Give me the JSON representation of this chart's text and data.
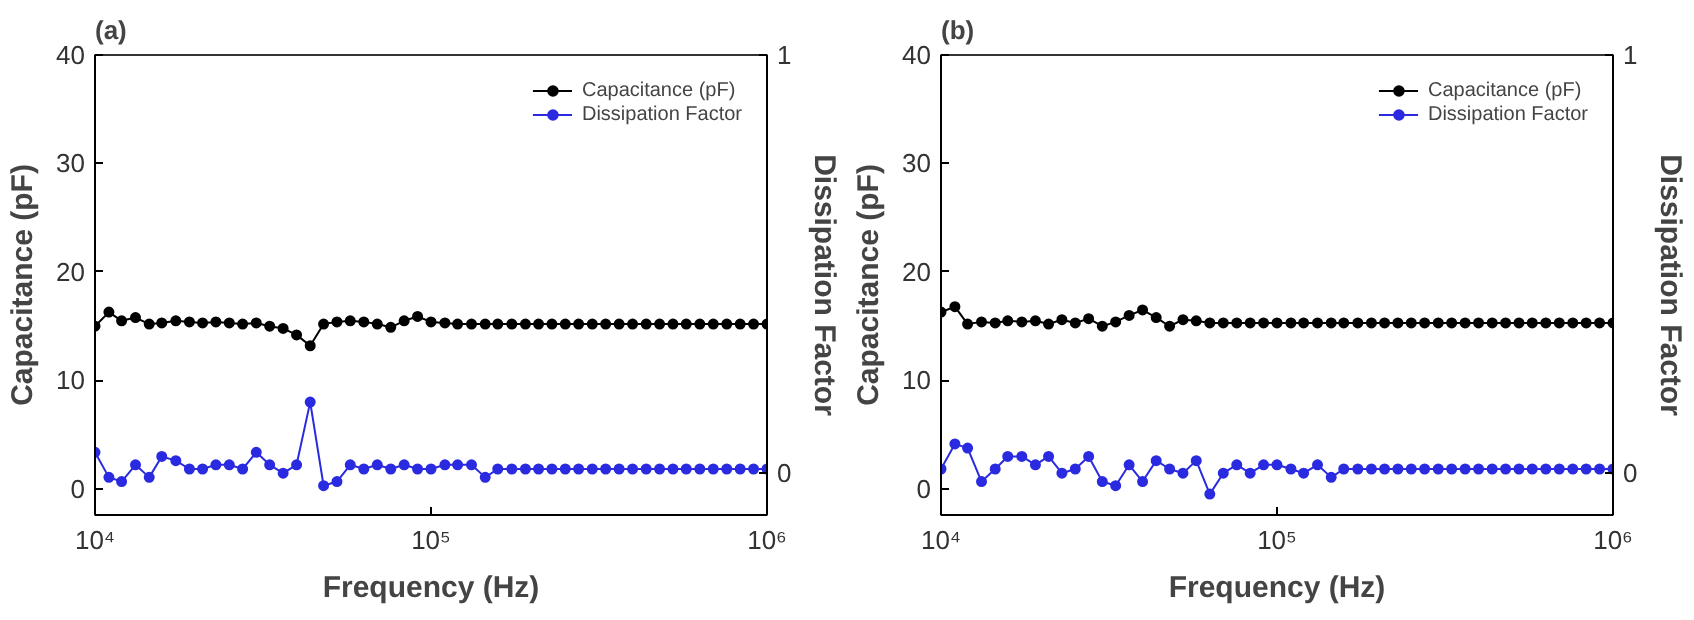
{
  "chart_data": [
    {
      "type": "line",
      "title": "(a)",
      "xlabel": "Frequency (Hz)",
      "ylabel": "Capacitance (pF)",
      "y2label": "Dissipation Factor",
      "log": "x",
      "grid": false,
      "legend": "top right",
      "marker": "circle",
      "line_style": "solid",
      "xlim": [
        10000,
        1000000
      ],
      "xticks": [
        {
          "value": 10000,
          "label": "10⁴"
        },
        {
          "value": 100000,
          "label": "10⁵"
        },
        {
          "value": 1000000,
          "label": "10⁶"
        }
      ],
      "ylim": [
        -2.4,
        40
      ],
      "yticks": [
        0,
        10,
        20,
        30,
        40
      ],
      "y2lim": [
        -0.1,
        1
      ],
      "y2ticks": [
        0,
        1
      ],
      "x": [
        10000,
        11000,
        12000,
        13200,
        14500,
        15800,
        17400,
        19100,
        20900,
        22900,
        25100,
        27500,
        30200,
        33100,
        36300,
        39800,
        43700,
        47900,
        52500,
        57500,
        63100,
        69200,
        75900,
        83200,
        91200,
        100000,
        110000,
        120000,
        132000,
        145000,
        158000,
        174000,
        191000,
        209000,
        229000,
        251000,
        275000,
        302000,
        331000,
        363000,
        398000,
        437000,
        479000,
        525000,
        575000,
        631000,
        692000,
        759000,
        832000,
        912000,
        1000000
      ],
      "series": [
        {
          "name": "Capacitance (pF)",
          "color": "#000000",
          "values": [
            15.0,
            16.3,
            15.5,
            15.8,
            15.2,
            15.3,
            15.5,
            15.4,
            15.3,
            15.4,
            15.3,
            15.2,
            15.3,
            15.0,
            14.8,
            14.2,
            13.2,
            15.2,
            15.4,
            15.5,
            15.4,
            15.2,
            14.9,
            15.5,
            15.9,
            15.4,
            15.3,
            15.2,
            15.2,
            15.2,
            15.2,
            15.2,
            15.2,
            15.2,
            15.2,
            15.2,
            15.2,
            15.2,
            15.2,
            15.2,
            15.2,
            15.2,
            15.2,
            15.2,
            15.2,
            15.2,
            15.2,
            15.2,
            15.2,
            15.2,
            15.2
          ]
        },
        {
          "name": "Dissipation Factor",
          "color": "#2a2ae0",
          "axis": "y2",
          "values": [
            0.05,
            -0.01,
            -0.02,
            0.02,
            -0.01,
            0.04,
            0.03,
            0.01,
            0.01,
            0.02,
            0.02,
            0.01,
            0.05,
            0.02,
            0.0,
            0.02,
            0.17,
            -0.03,
            -0.02,
            0.02,
            0.01,
            0.02,
            0.01,
            0.02,
            0.01,
            0.01,
            0.02,
            0.02,
            0.02,
            -0.01,
            0.01,
            0.01,
            0.01,
            0.01,
            0.01,
            0.01,
            0.01,
            0.01,
            0.01,
            0.01,
            0.01,
            0.01,
            0.01,
            0.01,
            0.01,
            0.01,
            0.01,
            0.01,
            0.01,
            0.01,
            0.01
          ]
        }
      ]
    },
    {
      "type": "line",
      "title": "(b)",
      "xlabel": "Frequency (Hz)",
      "ylabel": "Capacitance (pF)",
      "y2label": "Dissipation Factor",
      "log": "x",
      "grid": false,
      "legend": "top right",
      "marker": "circle",
      "line_style": "solid",
      "xlim": [
        10000,
        1000000
      ],
      "xticks": [
        {
          "value": 10000,
          "label": "10⁴"
        },
        {
          "value": 100000,
          "label": "10⁵"
        },
        {
          "value": 1000000,
          "label": "10⁶"
        }
      ],
      "ylim": [
        -2.4,
        40
      ],
      "yticks": [
        0,
        10,
        20,
        30,
        40
      ],
      "y2lim": [
        -0.1,
        1
      ],
      "y2ticks": [
        0,
        1
      ],
      "x": [
        10000,
        11000,
        12000,
        13200,
        14500,
        15800,
        17400,
        19100,
        20900,
        22900,
        25100,
        27500,
        30200,
        33100,
        36300,
        39800,
        43700,
        47900,
        52500,
        57500,
        63100,
        69200,
        75900,
        83200,
        91200,
        100000,
        110000,
        120000,
        132000,
        145000,
        158000,
        174000,
        191000,
        209000,
        229000,
        251000,
        275000,
        302000,
        331000,
        363000,
        398000,
        437000,
        479000,
        525000,
        575000,
        631000,
        692000,
        759000,
        832000,
        912000,
        1000000
      ],
      "series": [
        {
          "name": "Capacitance (pF)",
          "color": "#000000",
          "values": [
            16.3,
            16.8,
            15.2,
            15.4,
            15.3,
            15.5,
            15.4,
            15.5,
            15.2,
            15.6,
            15.3,
            15.7,
            15.0,
            15.4,
            16.0,
            16.5,
            15.8,
            15.0,
            15.6,
            15.5,
            15.3,
            15.3,
            15.3,
            15.3,
            15.3,
            15.3,
            15.3,
            15.3,
            15.3,
            15.3,
            15.3,
            15.3,
            15.3,
            15.3,
            15.3,
            15.3,
            15.3,
            15.3,
            15.3,
            15.3,
            15.3,
            15.3,
            15.3,
            15.3,
            15.3,
            15.3,
            15.3,
            15.3,
            15.3,
            15.3,
            15.3
          ]
        },
        {
          "name": "Dissipation Factor",
          "color": "#2a2ae0",
          "axis": "y2",
          "values": [
            0.01,
            0.07,
            0.06,
            -0.02,
            0.01,
            0.04,
            0.04,
            0.02,
            0.04,
            0.0,
            0.01,
            0.04,
            -0.02,
            -0.03,
            0.02,
            -0.02,
            0.03,
            0.01,
            0.0,
            0.03,
            -0.05,
            0.0,
            0.02,
            0.0,
            0.02,
            0.02,
            0.01,
            0.0,
            0.02,
            -0.01,
            0.01,
            0.01,
            0.01,
            0.01,
            0.01,
            0.01,
            0.01,
            0.01,
            0.01,
            0.01,
            0.01,
            0.01,
            0.01,
            0.01,
            0.01,
            0.01,
            0.01,
            0.01,
            0.01,
            0.01,
            0.01
          ]
        }
      ]
    }
  ]
}
